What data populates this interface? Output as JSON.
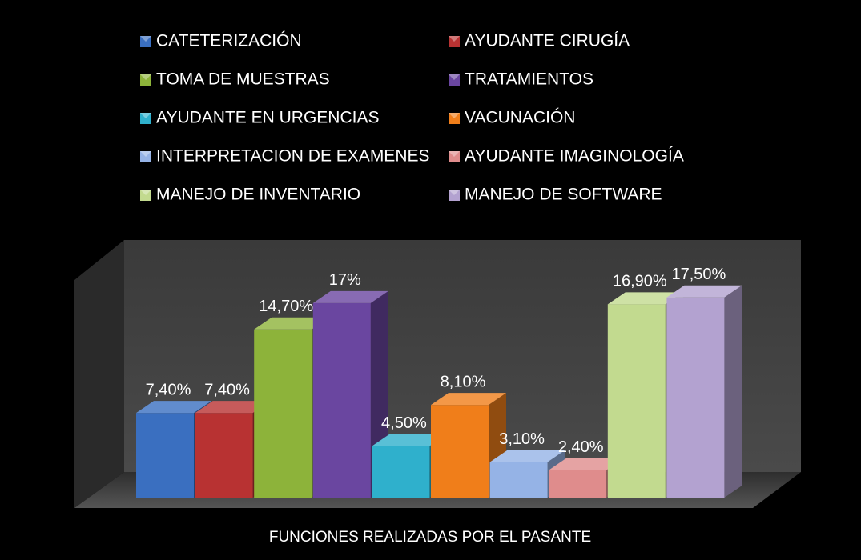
{
  "chart_data": {
    "type": "bar3d",
    "categories": [
      "FUNCIONES REALIZADAS POR EL PASANTE"
    ],
    "series": [
      {
        "name": "CATETERIZACIÓN",
        "color": "#3a6fc0",
        "values": [
          7.4
        ],
        "value_labels": [
          "7,40%"
        ]
      },
      {
        "name": "AYUDANTE CIRUGÍA",
        "color": "#b83232",
        "values": [
          7.4
        ],
        "value_labels": [
          "7,40%"
        ]
      },
      {
        "name": "TOMA DE MUESTRAS",
        "color": "#8db33a",
        "values": [
          14.7
        ],
        "value_labels": [
          "14,70%"
        ]
      },
      {
        "name": "TRATAMIENTOS",
        "color": "#6a46a0",
        "values": [
          17
        ],
        "value_labels": [
          "17%"
        ]
      },
      {
        "name": "AYUDANTE EN URGENCIAS",
        "color": "#2fb0cc",
        "values": [
          4.5
        ],
        "value_labels": [
          "4,50%"
        ]
      },
      {
        "name": "VACUNACIÓN",
        "color": "#f07e1a",
        "values": [
          8.1
        ],
        "value_labels": [
          "8,10%"
        ]
      },
      {
        "name": "INTERPRETACION DE EXAMENES",
        "color": "#95b3e6",
        "values": [
          3.1
        ],
        "value_labels": [
          "3,10%"
        ]
      },
      {
        "name": "AYUDANTE  IMAGINOLOGÍA",
        "color": "#df8c8c",
        "values": [
          2.4
        ],
        "value_labels": [
          "2,40%"
        ]
      },
      {
        "name": "MANEJO DE INVENTARIO",
        "color": "#c2da8f",
        "values": [
          16.9
        ],
        "value_labels": [
          "16,90%"
        ]
      },
      {
        "name": "MANEJO DE SOFTWARE",
        "color": "#b3a2d0",
        "values": [
          17.5
        ],
        "value_labels": [
          "17,50%"
        ]
      }
    ]
  }
}
